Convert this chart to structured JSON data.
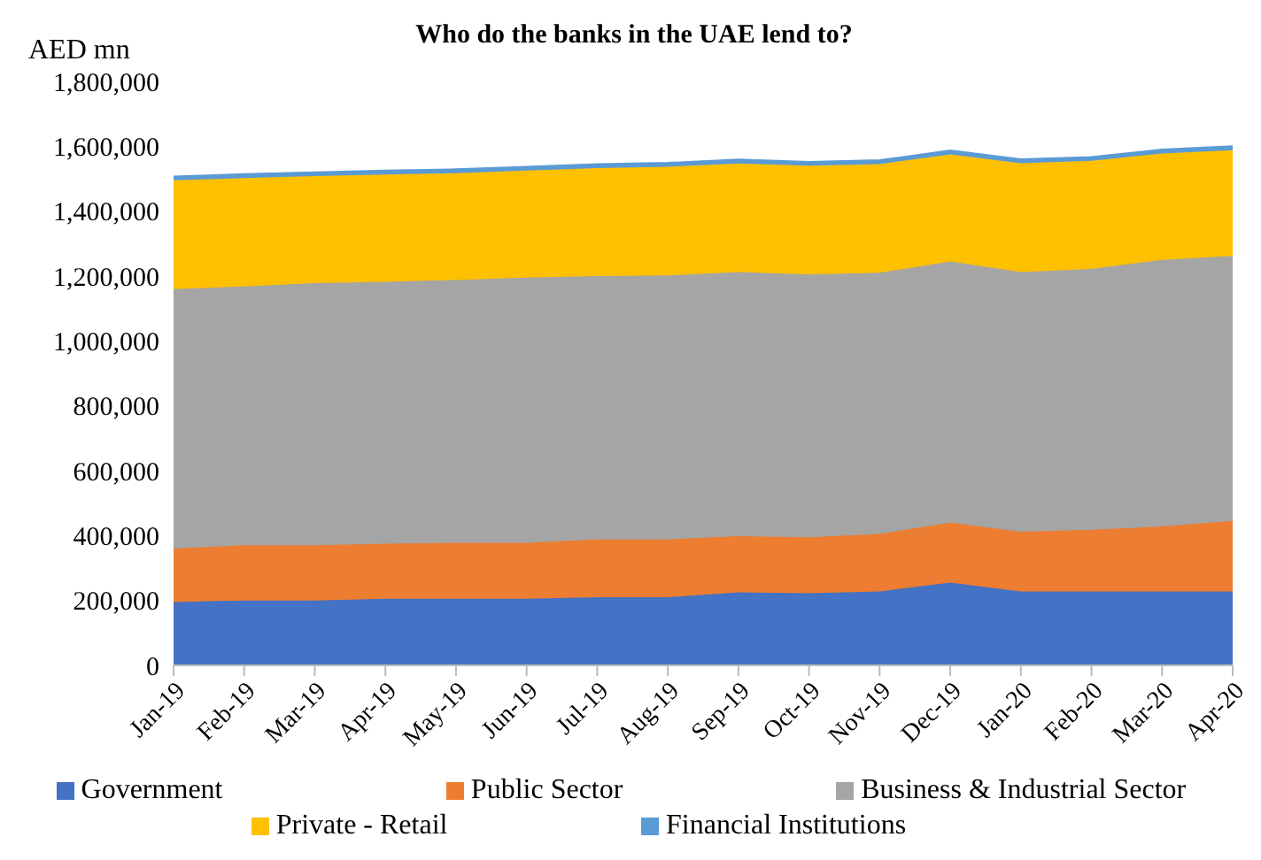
{
  "chart_data": {
    "type": "area",
    "title": "Who do the banks in the UAE lend to?",
    "ylabel": "AED mn",
    "categories": [
      "Jan-19",
      "Feb-19",
      "Mar-19",
      "Apr-19",
      "May-19",
      "Jun-19",
      "Jul-19",
      "Aug-19",
      "Sep-19",
      "Oct-19",
      "Nov-19",
      "Dec-19",
      "Jan-20",
      "Feb-20",
      "Mar-20",
      "Apr-20"
    ],
    "stacked": true,
    "series": [
      {
        "name": "Government",
        "color": "#4472c4",
        "values": [
          195000,
          200000,
          200000,
          205000,
          205000,
          205000,
          210000,
          210000,
          225000,
          222000,
          228000,
          255000,
          228000,
          228000,
          228000,
          228000
        ]
      },
      {
        "name": "Public Sector",
        "color": "#ed7d31",
        "values": [
          165000,
          170000,
          170000,
          170000,
          173000,
          173000,
          178000,
          178000,
          173000,
          173000,
          177000,
          185000,
          184000,
          190000,
          200000,
          217000
        ]
      },
      {
        "name": "Business & Industrial Sector",
        "color": "#a5a5a5",
        "values": [
          800000,
          798000,
          808000,
          807000,
          810000,
          817000,
          812000,
          814000,
          814000,
          810000,
          805000,
          805000,
          800000,
          804000,
          822000,
          817000
        ]
      },
      {
        "name": "Private - Retail",
        "color": "#ffc000",
        "values": [
          335000,
          334000,
          330000,
          331000,
          329000,
          330000,
          333000,
          335000,
          335000,
          335000,
          335000,
          330000,
          336000,
          333000,
          328000,
          326000
        ]
      },
      {
        "name": "Financial Institutions",
        "color": "#5b9bd5",
        "values": [
          12000,
          12000,
          12000,
          12000,
          12000,
          12000,
          12000,
          12000,
          12000,
          12000,
          12000,
          12000,
          12000,
          12000,
          12000,
          12000
        ]
      }
    ],
    "ylim": [
      0,
      1800000
    ],
    "yticks": [
      0,
      {
        "value": 200000,
        "label": "200,000"
      },
      {
        "value": 400000,
        "label": "400,000"
      },
      {
        "value": 600000,
        "label": "600,000"
      },
      {
        "value": 800000,
        "label": "800,000"
      },
      {
        "value": 1000000,
        "label": "1,000,000"
      },
      {
        "value": 1200000,
        "label": "1,200,000"
      },
      {
        "value": 1400000,
        "label": "1,400,000"
      },
      {
        "value": 1600000,
        "label": "1,600,000"
      },
      {
        "value": 1800000,
        "label": "1,800,000"
      }
    ],
    "grid": false,
    "legend": "bottom"
  }
}
